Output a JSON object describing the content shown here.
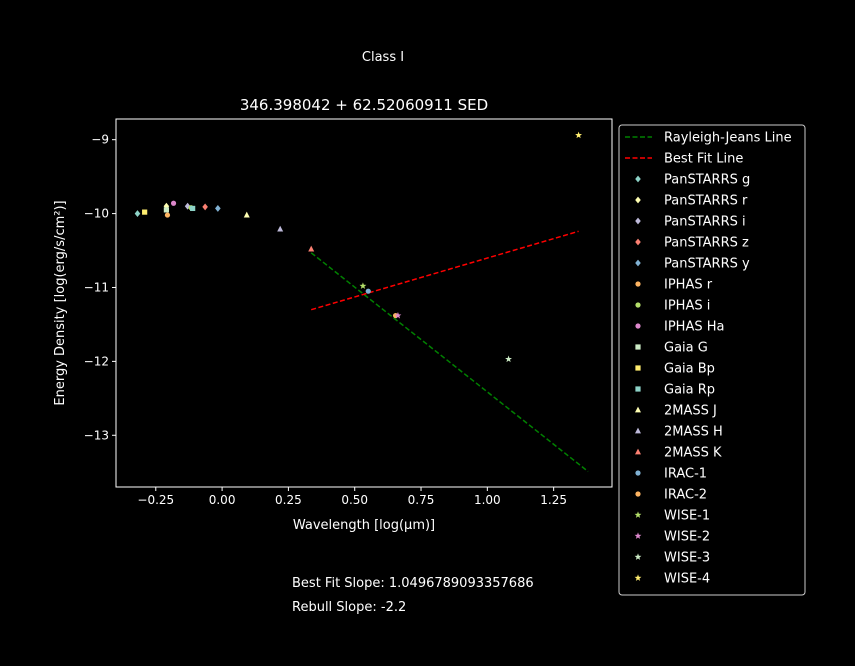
{
  "chart_data": {
    "type": "scatter",
    "suptitle": "Class I",
    "title": "346.398042 + 62.52060911 SED",
    "xlabel": "Wavelength [log(μm)]",
    "ylabel": "Energy Density [log(erg/s/cm²)]",
    "xlim": [
      -0.4,
      1.47
    ],
    "ylim": [
      -13.7,
      -8.72
    ],
    "xticks": [
      -0.25,
      0.0,
      0.25,
      0.5,
      0.75,
      1.0,
      1.25
    ],
    "xtick_labels": [
      "−0.25",
      "0.00",
      "0.25",
      "0.50",
      "0.75",
      "1.00",
      "1.25"
    ],
    "yticks": [
      -13,
      -12,
      -11,
      -10,
      -9
    ],
    "ytick_labels": [
      "−13",
      "−12",
      "−11",
      "−10",
      "−9"
    ],
    "grid": false,
    "legend_position": "outside-right",
    "lines": [
      {
        "name": "Rayleigh-Jeans Line",
        "color": "#008000",
        "dash": true,
        "x": [
          0.336,
          1.38
        ],
        "y": [
          -10.53,
          -13.49
        ]
      },
      {
        "name": "Best Fit Line",
        "color": "#ff0000",
        "dash": true,
        "x": [
          0.336,
          1.344
        ],
        "y": [
          -11.3,
          -10.24
        ]
      }
    ],
    "series": [
      {
        "name": "PanSTARRS g",
        "marker": "diamond",
        "color": "#8dd3c7",
        "x": [
          -0.319
        ],
        "y": [
          -10.0
        ]
      },
      {
        "name": "PanSTARRS r",
        "marker": "diamond",
        "color": "#ffffb3",
        "x": [
          -0.21
        ],
        "y": [
          -9.9
        ]
      },
      {
        "name": "PanSTARRS i",
        "marker": "diamond",
        "color": "#bebada",
        "x": [
          -0.13
        ],
        "y": [
          -9.9
        ]
      },
      {
        "name": "PanSTARRS z",
        "marker": "diamond",
        "color": "#fb8072",
        "x": [
          -0.064
        ],
        "y": [
          -9.91
        ]
      },
      {
        "name": "PanSTARRS y",
        "marker": "diamond",
        "color": "#80b1d3",
        "x": [
          -0.016
        ],
        "y": [
          -9.93
        ]
      },
      {
        "name": "IPHAS r",
        "marker": "circle",
        "color": "#fdb462",
        "x": [
          -0.206
        ],
        "y": [
          -10.02
        ]
      },
      {
        "name": "IPHAS i",
        "marker": "circle",
        "color": "#b3de69",
        "x": [
          -0.117
        ],
        "y": [
          -9.92
        ]
      },
      {
        "name": "IPHAS Ha",
        "marker": "circle",
        "color": "#dd88cc",
        "x": [
          -0.183
        ],
        "y": [
          -9.86
        ]
      },
      {
        "name": "Gaia G",
        "marker": "square",
        "color": "#ccebc5",
        "x": [
          -0.21
        ],
        "y": [
          -9.95
        ]
      },
      {
        "name": "Gaia Bp",
        "marker": "square",
        "color": "#ffed6f",
        "x": [
          -0.292
        ],
        "y": [
          -9.98
        ]
      },
      {
        "name": "Gaia Rp",
        "marker": "square",
        "color": "#8dd3c7",
        "x": [
          -0.111
        ],
        "y": [
          -9.93
        ]
      },
      {
        "name": "2MASS J",
        "marker": "triangle",
        "color": "#ffffb3",
        "x": [
          0.093
        ],
        "y": [
          -10.02
        ]
      },
      {
        "name": "2MASS H",
        "marker": "triangle",
        "color": "#bebada",
        "x": [
          0.219
        ],
        "y": [
          -10.21
        ]
      },
      {
        "name": "2MASS K",
        "marker": "triangle",
        "color": "#fb8072",
        "x": [
          0.336
        ],
        "y": [
          -10.48
        ]
      },
      {
        "name": "IRAC-1",
        "marker": "circle",
        "color": "#80b1d3",
        "x": [
          0.551
        ],
        "y": [
          -11.05
        ]
      },
      {
        "name": "IRAC-2",
        "marker": "circle",
        "color": "#fdb462",
        "x": [
          0.654
        ],
        "y": [
          -11.38
        ]
      },
      {
        "name": "WISE-1",
        "marker": "star",
        "color": "#b3de69",
        "x": [
          0.531
        ],
        "y": [
          -10.98
        ]
      },
      {
        "name": "WISE-2",
        "marker": "star",
        "color": "#dd88cc",
        "x": [
          0.663
        ],
        "y": [
          -11.38
        ]
      },
      {
        "name": "WISE-3",
        "marker": "star",
        "color": "#ccebc5",
        "x": [
          1.08
        ],
        "y": [
          -11.97
        ]
      },
      {
        "name": "WISE-4",
        "marker": "star",
        "color": "#ffed6f",
        "x": [
          1.344
        ],
        "y": [
          -8.94
        ]
      }
    ]
  },
  "notes": {
    "best_fit": "Best Fit Slope: 1.0496789093357686",
    "rebull": "Rebull Slope: -2.2"
  }
}
